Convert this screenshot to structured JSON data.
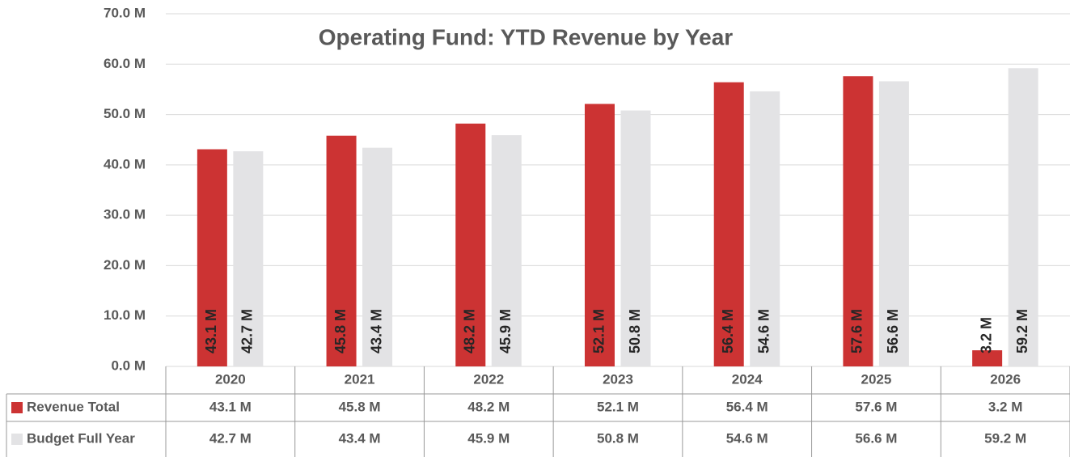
{
  "chart_data": {
    "type": "bar",
    "title": "Operating Fund: YTD Revenue by Year",
    "categories": [
      "2020",
      "2021",
      "2022",
      "2023",
      "2024",
      "2025",
      "2026"
    ],
    "series": [
      {
        "name": "Revenue Total",
        "color": "#cc3333",
        "values": [
          43.1,
          45.8,
          48.2,
          52.1,
          56.4,
          57.6,
          3.2
        ],
        "value_labels": [
          "43.1 M",
          "45.8 M",
          "48.2 M",
          "52.1 M",
          "56.4 M",
          "57.6 M",
          "3.2 M"
        ]
      },
      {
        "name": "Budget Full Year",
        "color": "#e3e3e5",
        "values": [
          42.7,
          43.4,
          45.9,
          50.8,
          54.6,
          56.6,
          59.2
        ],
        "value_labels": [
          "42.7 M",
          "43.4 M",
          "45.9 M",
          "50.8 M",
          "54.6 M",
          "56.6 M",
          "59.2 M"
        ]
      }
    ],
    "ylim": [
      0,
      70
    ],
    "yticks": [
      {
        "value": 0,
        "label": "0.0 M"
      },
      {
        "value": 10,
        "label": "10.0 M"
      },
      {
        "value": 20,
        "label": "20.0 M"
      },
      {
        "value": 30,
        "label": "30.0 M"
      },
      {
        "value": 40,
        "label": "40.0 M"
      },
      {
        "value": 50,
        "label": "50.0 M"
      },
      {
        "value": 60,
        "label": "60.0 M"
      },
      {
        "value": 70,
        "label": "70.0 M"
      }
    ],
    "grid": true
  }
}
